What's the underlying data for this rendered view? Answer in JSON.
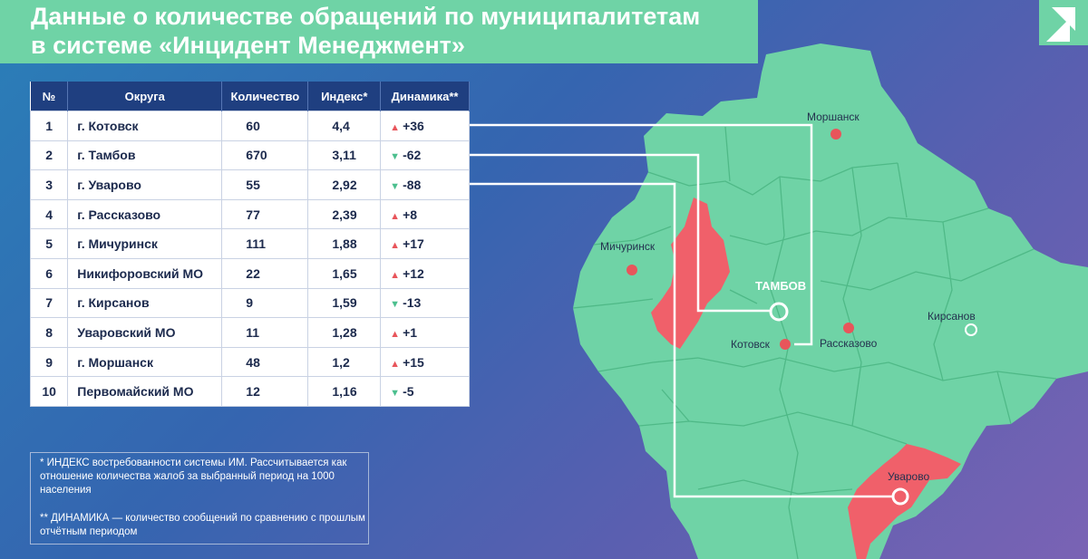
{
  "title": {
    "line1": "Данные о количестве обращений по муниципалитетам",
    "line2": "в системе «Инцидент Менеджмент»"
  },
  "table": {
    "headers": [
      "№",
      "Округа",
      "Количество",
      "Индекс*",
      "Динамика**"
    ],
    "rows": [
      {
        "n": "1",
        "name": "г. Котовск",
        "count": "60",
        "index": "4,4",
        "dyn": "+36",
        "dir": "up"
      },
      {
        "n": "2",
        "name": "г. Тамбов",
        "count": "670",
        "index": "3,11",
        "dyn": "-62",
        "dir": "down"
      },
      {
        "n": "3",
        "name": "г. Уварово",
        "count": "55",
        "index": "2,92",
        "dyn": "-88",
        "dir": "down"
      },
      {
        "n": "4",
        "name": "г. Рассказово",
        "count": "77",
        "index": "2,39",
        "dyn": "+8",
        "dir": "up"
      },
      {
        "n": "5",
        "name": "г. Мичуринск",
        "count": "111",
        "index": "1,88",
        "dyn": "+17",
        "dir": "up"
      },
      {
        "n": "6",
        "name": "Никифоровский МО",
        "count": "22",
        "index": "1,65",
        "dyn": "+12",
        "dir": "up"
      },
      {
        "n": "7",
        "name": "г. Кирсанов",
        "count": "9",
        "index": "1,59",
        "dyn": "-13",
        "dir": "down"
      },
      {
        "n": "8",
        "name": "Уваровский МО",
        "count": "11",
        "index": "1,28",
        "dyn": "+1",
        "dir": "up"
      },
      {
        "n": "9",
        "name": "г. Моршанск",
        "count": "48",
        "index": "1,2",
        "dyn": "+15",
        "dir": "up"
      },
      {
        "n": "10",
        "name": "Первомайский МО",
        "count": "12",
        "index": "1,16",
        "dyn": "-5",
        "dir": "down"
      }
    ]
  },
  "notes": {
    "index": "* ИНДЕКС  востребованности системы ИМ. Рассчитывается как отношение количества жалоб за выбранный период на 1000 населения",
    "dynamics": "** ДИНАМИКА  — количество сообщений по сравнению с прошлым отчётным периодом"
  },
  "map": {
    "cities": {
      "morshansk": "Моршанск",
      "michurinsk": "Мичуринск",
      "tambov": "ТАМБОВ",
      "kirsanov": "Кирсанов",
      "kotovsk": "Котовск",
      "rasskazovo": "Рассказово",
      "uvarovo": "Уварово"
    },
    "colors": {
      "region": "#6fd3a6",
      "highlight": "#f0606a",
      "border": "#4fb987",
      "city_dot": "#e8555b",
      "connector": "#ffffff"
    }
  },
  "icons": {
    "logo": "logo-icon",
    "up": "triangle-up-icon",
    "down": "triangle-down-icon"
  }
}
